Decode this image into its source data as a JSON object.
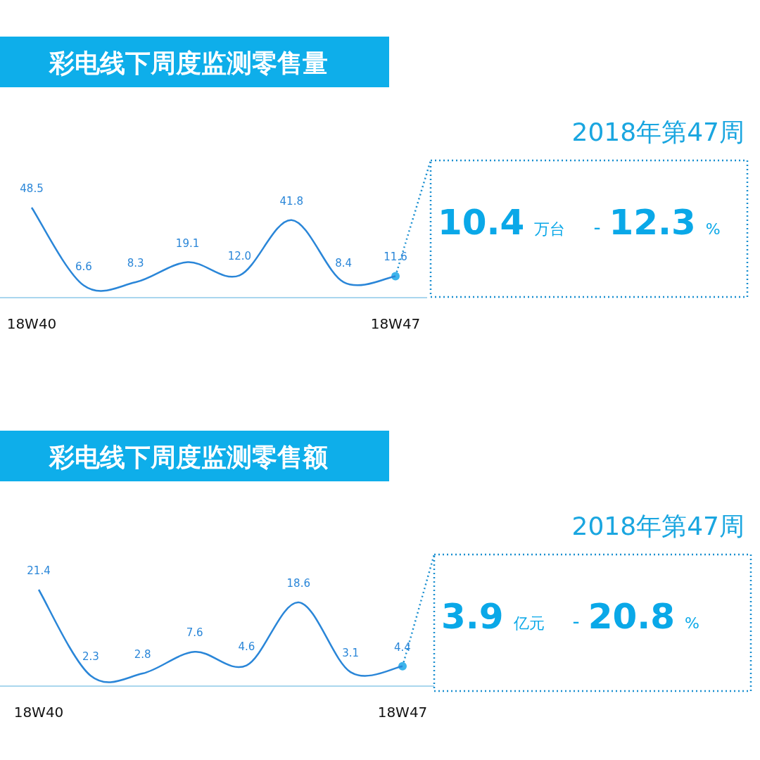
{
  "chart_data": [
    {
      "type": "line",
      "title": "彩电线下周度监测零售量",
      "categories": [
        "18W40",
        null,
        null,
        null,
        null,
        null,
        null,
        "18W47"
      ],
      "color": "#2a86d8",
      "values": [
        48.5,
        6.6,
        8.3,
        19.1,
        12.0,
        41.8,
        8.4,
        11.6
      ],
      "value_labels": [
        "48.5",
        "6.6",
        "8.3",
        "19.1",
        "12.0",
        "41.8",
        "8.4",
        "11.6"
      ]
    },
    {
      "type": "other",
      "title": "2018年第47周",
      "annotations": [
        "10.4",
        "万台",
        "-",
        "12.3",
        "%"
      ]
    },
    {
      "type": "line",
      "title": "彩电线下周度监测零售额",
      "categories": [
        "18W40",
        null,
        null,
        null,
        null,
        null,
        null,
        "18W47"
      ],
      "color": "#2a86d8",
      "values": [
        21.4,
        2.3,
        2.8,
        7.6,
        4.6,
        18.6,
        3.1,
        4.4
      ],
      "value_labels": [
        "21.4",
        "2.3",
        "2.8",
        "7.6",
        "4.6",
        "18.6",
        "3.1",
        "4.4"
      ]
    },
    {
      "type": "other",
      "title": "2018年第47周",
      "annotations": [
        "3.9",
        "亿元",
        "-",
        "20.8",
        "%"
      ]
    }
  ]
}
